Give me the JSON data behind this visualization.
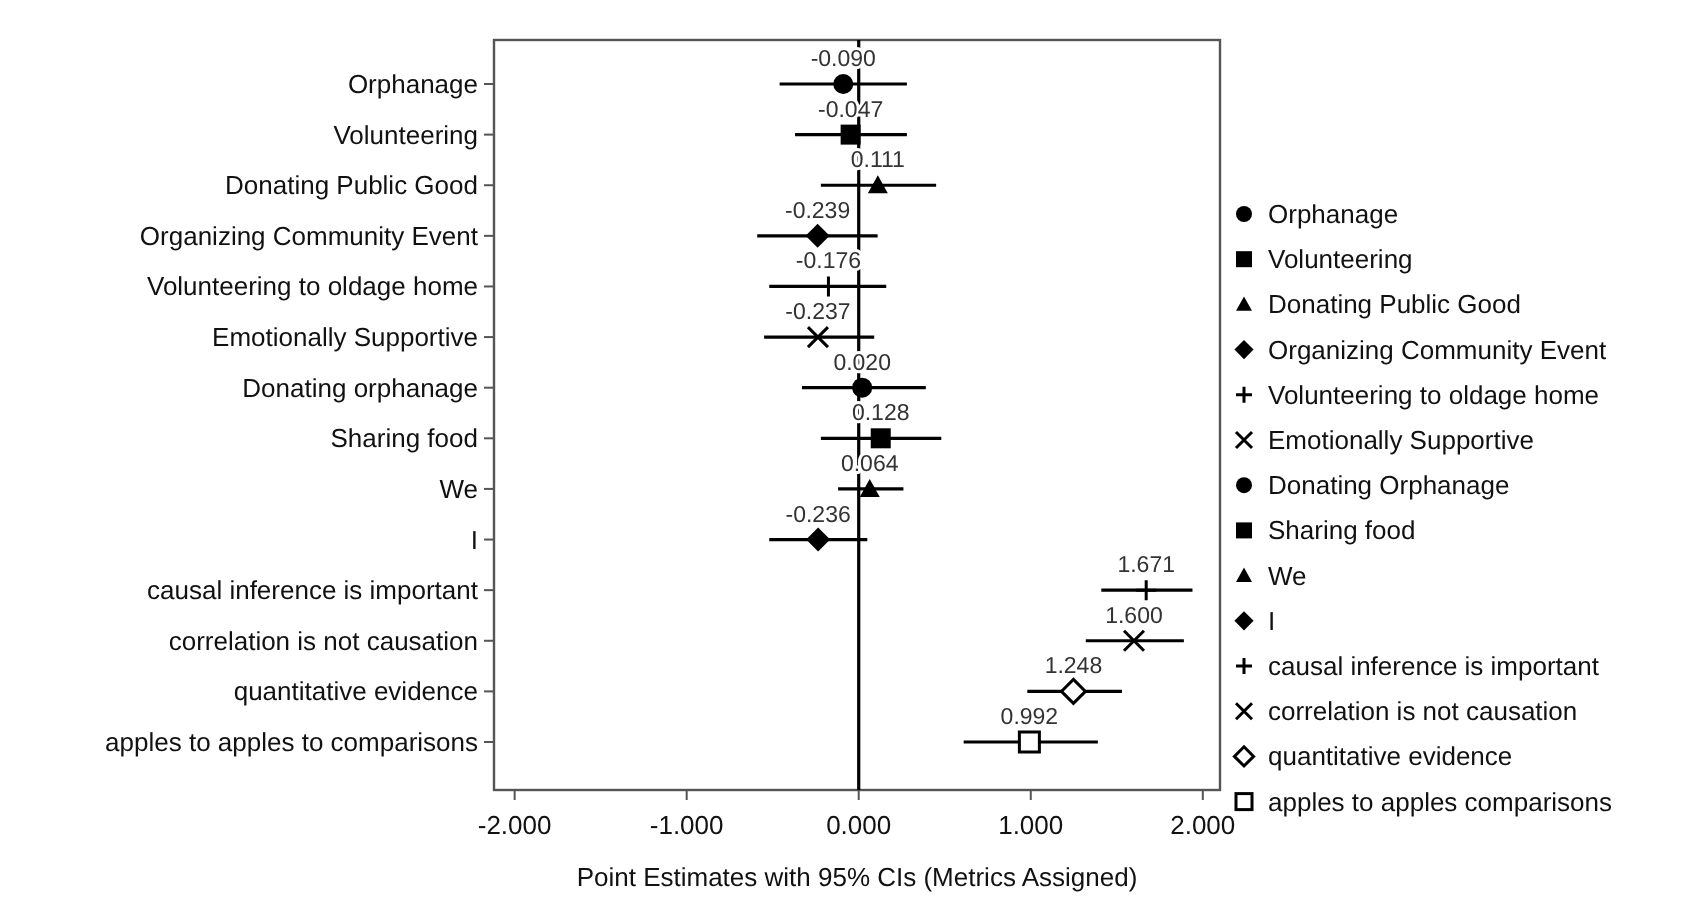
{
  "chart_data": {
    "type": "scatter",
    "orientation": "horizontal",
    "xlabel": "Point Estimates with 95% CIs (Metrics Assigned)",
    "categories": [
      "Orphanage",
      "Volunteering",
      "Donating Public Good",
      "Organizing Community Event",
      "Volunteering to oldage home",
      "Emotionally Supportive",
      "Donating orphanage",
      "Sharing food",
      "We",
      "I",
      "causal inference is important",
      "correlation is not causation",
      "quantitative evidence",
      "apples to apples to comparisons"
    ],
    "xlim": [
      -2.12,
      2.1
    ],
    "xticks": [
      {
        "value": -2,
        "label": "-2.000"
      },
      {
        "value": -1,
        "label": "-1.000"
      },
      {
        "value": 0,
        "label": "0.000"
      },
      {
        "value": 1,
        "label": "1.000"
      },
      {
        "value": 2,
        "label": "2.000"
      }
    ],
    "grid": false,
    "legend": "right",
    "ref_lines": [
      {
        "axis": "x",
        "value": 0,
        "color": "#000000"
      }
    ],
    "series": [
      {
        "name": "Orphanage",
        "color": "#000000",
        "marker": "circle",
        "values": [
          -0.09,
          null,
          null,
          null,
          null,
          null,
          null,
          null,
          null,
          null,
          null,
          null,
          null,
          null
        ],
        "errors": [
          [
            -0.46,
            0.28
          ],
          null,
          null,
          null,
          null,
          null,
          null,
          null,
          null,
          null,
          null,
          null,
          null,
          null
        ],
        "value_labels": [
          "-0.090",
          null,
          null,
          null,
          null,
          null,
          null,
          null,
          null,
          null,
          null,
          null,
          null,
          null
        ]
      },
      {
        "name": "Volunteering",
        "color": "#000000",
        "marker": "square",
        "values": [
          null,
          -0.047,
          null,
          null,
          null,
          null,
          null,
          null,
          null,
          null,
          null,
          null,
          null,
          null
        ],
        "errors": [
          null,
          [
            -0.37,
            0.28
          ],
          null,
          null,
          null,
          null,
          null,
          null,
          null,
          null,
          null,
          null,
          null,
          null
        ],
        "value_labels": [
          null,
          "-0.047",
          null,
          null,
          null,
          null,
          null,
          null,
          null,
          null,
          null,
          null,
          null,
          null
        ]
      },
      {
        "name": "Donating Public Good",
        "color": "#000000",
        "marker": "triangle",
        "values": [
          null,
          null,
          0.111,
          null,
          null,
          null,
          null,
          null,
          null,
          null,
          null,
          null,
          null,
          null
        ],
        "errors": [
          null,
          null,
          [
            -0.22,
            0.45
          ],
          null,
          null,
          null,
          null,
          null,
          null,
          null,
          null,
          null,
          null,
          null
        ],
        "value_labels": [
          null,
          null,
          "0.111",
          null,
          null,
          null,
          null,
          null,
          null,
          null,
          null,
          null,
          null,
          null
        ]
      },
      {
        "name": "Organizing Community Event",
        "color": "#000000",
        "marker": "diamond",
        "values": [
          null,
          null,
          null,
          -0.239,
          null,
          null,
          null,
          null,
          null,
          null,
          null,
          null,
          null,
          null
        ],
        "errors": [
          null,
          null,
          null,
          [
            -0.59,
            0.11
          ],
          null,
          null,
          null,
          null,
          null,
          null,
          null,
          null,
          null,
          null
        ],
        "value_labels": [
          null,
          null,
          null,
          "-0.239",
          null,
          null,
          null,
          null,
          null,
          null,
          null,
          null,
          null,
          null
        ]
      },
      {
        "name": "Volunteering to oldage home",
        "color": "#000000",
        "marker": "plus",
        "values": [
          null,
          null,
          null,
          null,
          -0.176,
          null,
          null,
          null,
          null,
          null,
          null,
          null,
          null,
          null
        ],
        "errors": [
          null,
          null,
          null,
          null,
          [
            -0.52,
            0.16
          ],
          null,
          null,
          null,
          null,
          null,
          null,
          null,
          null,
          null
        ],
        "value_labels": [
          null,
          null,
          null,
          null,
          "-0.176",
          null,
          null,
          null,
          null,
          null,
          null,
          null,
          null,
          null
        ]
      },
      {
        "name": "Emotionally Supportive",
        "color": "#000000",
        "marker": "cross",
        "values": [
          null,
          null,
          null,
          null,
          null,
          -0.237,
          null,
          null,
          null,
          null,
          null,
          null,
          null,
          null
        ],
        "errors": [
          null,
          null,
          null,
          null,
          null,
          [
            -0.55,
            0.09
          ],
          null,
          null,
          null,
          null,
          null,
          null,
          null,
          null
        ],
        "value_labels": [
          null,
          null,
          null,
          null,
          null,
          "-0.237",
          null,
          null,
          null,
          null,
          null,
          null,
          null,
          null
        ]
      },
      {
        "name": "Donating Orphanage",
        "color": "#000000",
        "marker": "circle",
        "values": [
          null,
          null,
          null,
          null,
          null,
          null,
          0.02,
          null,
          null,
          null,
          null,
          null,
          null,
          null
        ],
        "errors": [
          null,
          null,
          null,
          null,
          null,
          null,
          [
            -0.33,
            0.39
          ],
          null,
          null,
          null,
          null,
          null,
          null,
          null
        ],
        "value_labels": [
          null,
          null,
          null,
          null,
          null,
          null,
          "0.020",
          null,
          null,
          null,
          null,
          null,
          null,
          null
        ]
      },
      {
        "name": "Sharing food",
        "color": "#000000",
        "marker": "square",
        "values": [
          null,
          null,
          null,
          null,
          null,
          null,
          null,
          0.128,
          null,
          null,
          null,
          null,
          null,
          null
        ],
        "errors": [
          null,
          null,
          null,
          null,
          null,
          null,
          null,
          [
            -0.22,
            0.48
          ],
          null,
          null,
          null,
          null,
          null,
          null
        ],
        "value_labels": [
          null,
          null,
          null,
          null,
          null,
          null,
          null,
          "0.128",
          null,
          null,
          null,
          null,
          null,
          null
        ]
      },
      {
        "name": "We",
        "color": "#000000",
        "marker": "triangle",
        "values": [
          null,
          null,
          null,
          null,
          null,
          null,
          null,
          null,
          0.064,
          null,
          null,
          null,
          null,
          null
        ],
        "errors": [
          null,
          null,
          null,
          null,
          null,
          null,
          null,
          null,
          [
            -0.12,
            0.26
          ],
          null,
          null,
          null,
          null,
          null
        ],
        "value_labels": [
          null,
          null,
          null,
          null,
          null,
          null,
          null,
          null,
          "0.064",
          null,
          null,
          null,
          null,
          null
        ]
      },
      {
        "name": "I",
        "color": "#000000",
        "marker": "diamond",
        "values": [
          null,
          null,
          null,
          null,
          null,
          null,
          null,
          null,
          null,
          -0.236,
          null,
          null,
          null,
          null
        ],
        "errors": [
          null,
          null,
          null,
          null,
          null,
          null,
          null,
          null,
          null,
          [
            -0.52,
            0.05
          ],
          null,
          null,
          null,
          null
        ],
        "value_labels": [
          null,
          null,
          null,
          null,
          null,
          null,
          null,
          null,
          null,
          "-0.236",
          null,
          null,
          null,
          null
        ]
      },
      {
        "name": "causal inference is important",
        "color": "#000000",
        "marker": "plus",
        "values": [
          null,
          null,
          null,
          null,
          null,
          null,
          null,
          null,
          null,
          null,
          1.671,
          null,
          null,
          null
        ],
        "errors": [
          null,
          null,
          null,
          null,
          null,
          null,
          null,
          null,
          null,
          null,
          [
            1.41,
            1.94
          ],
          null,
          null,
          null
        ],
        "value_labels": [
          null,
          null,
          null,
          null,
          null,
          null,
          null,
          null,
          null,
          null,
          "1.671",
          null,
          null,
          null
        ]
      },
      {
        "name": "correlation is not causation",
        "color": "#000000",
        "marker": "cross",
        "values": [
          null,
          null,
          null,
          null,
          null,
          null,
          null,
          null,
          null,
          null,
          null,
          1.6,
          null,
          null
        ],
        "errors": [
          null,
          null,
          null,
          null,
          null,
          null,
          null,
          null,
          null,
          null,
          null,
          [
            1.32,
            1.89
          ],
          null,
          null
        ],
        "value_labels": [
          null,
          null,
          null,
          null,
          null,
          null,
          null,
          null,
          null,
          null,
          null,
          "1.600",
          null,
          null
        ]
      },
      {
        "name": "quantitative evidence",
        "color": "#000000",
        "marker": "diamond-open",
        "values": [
          null,
          null,
          null,
          null,
          null,
          null,
          null,
          null,
          null,
          null,
          null,
          null,
          1.248,
          null
        ],
        "errors": [
          null,
          null,
          null,
          null,
          null,
          null,
          null,
          null,
          null,
          null,
          null,
          null,
          [
            0.98,
            1.53
          ],
          null
        ],
        "value_labels": [
          null,
          null,
          null,
          null,
          null,
          null,
          null,
          null,
          null,
          null,
          null,
          null,
          "1.248",
          null
        ]
      },
      {
        "name": "apples to apples comparisons",
        "color": "#000000",
        "marker": "square-open",
        "values": [
          null,
          null,
          null,
          null,
          null,
          null,
          null,
          null,
          null,
          null,
          null,
          null,
          null,
          0.992
        ],
        "errors": [
          null,
          null,
          null,
          null,
          null,
          null,
          null,
          null,
          null,
          null,
          null,
          null,
          null,
          [
            0.61,
            1.39
          ]
        ],
        "value_labels": [
          null,
          null,
          null,
          null,
          null,
          null,
          null,
          null,
          null,
          null,
          null,
          null,
          null,
          "0.992"
        ]
      }
    ]
  }
}
